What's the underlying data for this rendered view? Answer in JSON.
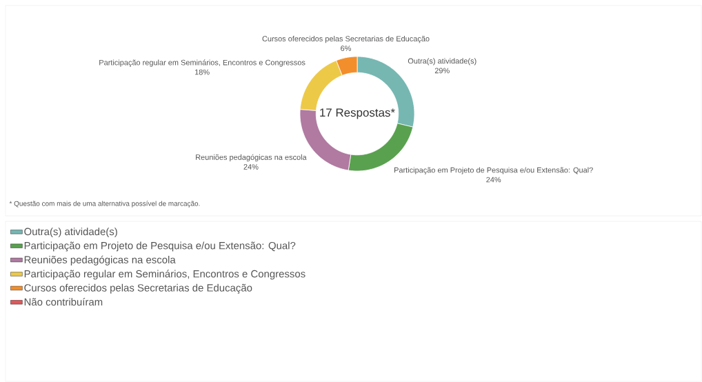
{
  "chart_data": {
    "type": "donut",
    "categories": [
      "Outra(s) atividade(s)",
      "Participação em Projeto de Pesquisa e/ou Extensão: Qual?",
      "Reuniões pedagógicas na escola",
      "Participação regular em Seminários, Encontros e Congressos",
      "Cursos oferecidos pelas Secretarias de Educação",
      "Não contribuíram"
    ],
    "values": [
      29,
      24,
      24,
      18,
      6,
      0
    ],
    "value_labels": [
      "29%",
      "24%",
      "24%",
      "18%",
      "6%",
      null
    ],
    "colors": [
      "#76b7b2",
      "#59a14f",
      "#b07aa1",
      "#edc948",
      "#f28e2b",
      "#e15759"
    ],
    "annotations": [
      "17 Respostas*",
      "* Questão com mais de uma alternativa possível de marcação."
    ],
    "legend": "bottom"
  }
}
